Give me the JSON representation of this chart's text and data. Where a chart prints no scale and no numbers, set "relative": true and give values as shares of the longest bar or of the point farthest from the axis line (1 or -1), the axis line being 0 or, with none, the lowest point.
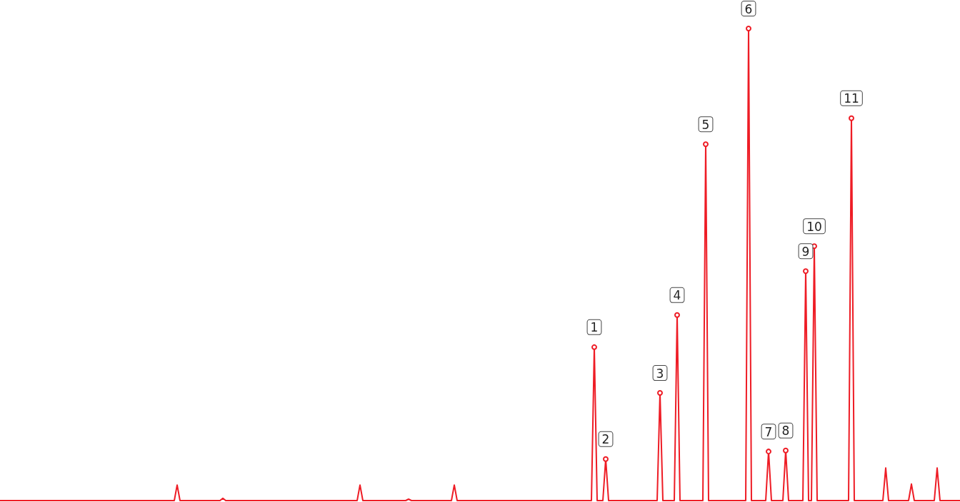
{
  "chart_data": {
    "type": "line",
    "relative": true,
    "tick_labels": false,
    "line_style": "solid",
    "annotations": [
      {
        "text": "1",
        "y": 0.325
      },
      {
        "text": "2",
        "y": 0.088
      },
      {
        "text": "3",
        "y": 0.228
      },
      {
        "text": "4",
        "y": 0.393
      },
      {
        "text": "5",
        "y": 0.755
      },
      {
        "text": "6",
        "y": 1
      },
      {
        "text": "7",
        "y": 0.104
      },
      {
        "text": "8",
        "y": 0.106
      },
      {
        "text": "9",
        "y": 0.486
      },
      {
        "text": "10",
        "y": 0.539
      },
      {
        "text": "11",
        "y": 0.81
      }
    ],
    "categories": [
      null,
      null,
      null,
      null,
      null,
      null,
      null,
      null,
      null,
      null,
      null,
      null,
      null,
      null,
      null,
      null,
      null,
      null,
      null,
      null,
      null,
      null,
      null,
      null,
      null,
      null,
      null,
      null,
      null,
      null,
      null,
      null,
      null,
      null,
      null,
      null,
      null,
      null,
      null,
      null,
      null,
      null,
      null,
      null,
      null,
      null,
      null,
      null,
      null,
      null,
      null,
      null,
      null,
      null,
      null,
      null,
      null,
      null,
      null,
      null,
      null,
      null,
      null,
      null,
      null,
      null,
      null,
      null,
      null,
      null,
      null,
      null,
      null,
      null,
      null,
      null,
      null,
      null,
      null,
      null,
      null,
      null,
      null,
      null,
      null,
      null,
      null,
      null,
      null,
      null,
      null,
      null,
      null,
      null,
      null,
      null,
      null,
      null,
      null,
      null,
      null,
      null,
      null,
      null,
      null,
      null,
      null,
      null,
      null,
      null,
      null,
      null,
      null,
      null,
      null,
      null,
      null,
      null,
      null,
      null,
      null,
      null,
      null,
      null,
      null,
      null,
      null,
      null,
      null,
      null,
      null,
      null,
      null,
      null,
      null,
      null,
      null,
      null,
      null,
      null,
      null,
      null,
      null,
      null,
      null,
      null,
      null,
      null,
      null,
      null,
      null,
      null,
      null,
      null,
      null,
      null,
      null,
      null,
      null,
      null,
      null,
      null,
      null,
      null,
      null,
      null,
      null,
      null,
      null,
      null,
      null,
      null,
      null,
      null,
      null,
      null,
      null,
      null,
      null,
      null,
      null,
      null,
      null,
      null,
      null,
      null,
      null,
      null,
      null,
      null,
      null,
      null,
      null,
      null,
      null,
      null,
      null,
      null,
      null,
      null,
      null,
      null,
      null,
      null,
      null,
      null,
      null,
      null,
      null,
      null,
      null,
      null,
      null,
      null,
      null,
      null,
      null,
      null,
      null,
      null,
      null,
      null,
      null,
      null,
      null,
      null,
      null,
      null,
      null,
      null,
      null,
      null,
      null,
      null,
      null,
      null,
      null,
      null,
      null,
      null,
      null,
      null,
      null,
      null,
      null,
      null,
      null,
      null,
      null,
      null,
      null,
      null,
      null,
      null,
      null,
      null,
      null,
      null,
      null,
      null,
      null,
      null,
      null,
      null,
      null,
      null,
      null,
      null,
      null,
      null,
      null,
      null,
      null,
      null,
      null,
      null,
      null,
      null,
      null,
      null,
      null,
      null,
      null,
      null,
      null,
      null,
      null,
      null,
      null,
      null,
      null,
      null,
      null,
      null,
      null,
      null,
      null,
      null,
      null,
      null,
      null,
      null,
      null,
      null,
      null,
      null,
      null,
      null,
      null,
      null,
      null,
      null,
      null,
      null,
      null,
      null,
      null,
      null,
      null,
      null,
      null,
      null,
      null,
      null,
      null,
      null,
      null,
      null,
      null,
      null,
      null,
      null,
      null,
      null,
      null,
      null,
      null
    ],
    "series": [
      {
        "color": "#ee1c25",
        "values": [
          0,
          0,
          0,
          0,
          0,
          0,
          0,
          0,
          0,
          0,
          0,
          0,
          0,
          0,
          0,
          0,
          0,
          0,
          0,
          0,
          0,
          0,
          0,
          0,
          0,
          0,
          0,
          0,
          0,
          0,
          0,
          0,
          0,
          0,
          0,
          0,
          0,
          0,
          0,
          0,
          0,
          0,
          0,
          0,
          0,
          0,
          0,
          0,
          0,
          0,
          0,
          0,
          0,
          0,
          0,
          0,
          0,
          0,
          0,
          0,
          0,
          0,
          0.033,
          0,
          0,
          0,
          0,
          0,
          0,
          0,
          0,
          0,
          0,
          0,
          0,
          0,
          0,
          0,
          0.005,
          0,
          0,
          0,
          0,
          0,
          0,
          0,
          0,
          0,
          0,
          0,
          0,
          0,
          0,
          0,
          0,
          0,
          0,
          0,
          0,
          0,
          0,
          0,
          0,
          0,
          0,
          0,
          0,
          0,
          0,
          0,
          0,
          0,
          0,
          0,
          0,
          0,
          0,
          0,
          0,
          0,
          0,
          0,
          0,
          0,
          0,
          0,
          0.033,
          0,
          0,
          0,
          0,
          0,
          0,
          0,
          0,
          0,
          0,
          0,
          0,
          0,
          0,
          0,
          0,
          0.003,
          0,
          0,
          0,
          0,
          0,
          0,
          0,
          0,
          0,
          0,
          0,
          0,
          0,
          0,
          0,
          0.033,
          0,
          0,
          0,
          0,
          0,
          0,
          0,
          0,
          0,
          0,
          0,
          0,
          0,
          0,
          0,
          0,
          0,
          0,
          0,
          0,
          0,
          0,
          0,
          0,
          0,
          0,
          0,
          0,
          0,
          0,
          0,
          0,
          0,
          0,
          0,
          0,
          0,
          0,
          0,
          0,
          0,
          0,
          0,
          0,
          0,
          0,
          0,
          0,
          0.325,
          0,
          0,
          0,
          0.088,
          0,
          0,
          0,
          0,
          0,
          0,
          0,
          0,
          0,
          0,
          0,
          0,
          0,
          0,
          0,
          0,
          0,
          0,
          0.228,
          0,
          0,
          0,
          0,
          0,
          0.393,
          0,
          0,
          0,
          0,
          0,
          0,
          0,
          0,
          0,
          0.755,
          0,
          0,
          0,
          0,
          0,
          0,
          0,
          0,
          0,
          0,
          0,
          0,
          0,
          0,
          1,
          0,
          0,
          0,
          0,
          0,
          0,
          0.104,
          0,
          0,
          0,
          0,
          0,
          0.106,
          0,
          0,
          0,
          0,
          0,
          0,
          0.486,
          0,
          0,
          0.539,
          0,
          0,
          0,
          0,
          0,
          0,
          0,
          0,
          0,
          0,
          0,
          0,
          0.81,
          0,
          0,
          0,
          0,
          0,
          0,
          0,
          0,
          0,
          0,
          0,
          0.069,
          0,
          0,
          0,
          0,
          0,
          0,
          0,
          0,
          0.035,
          0,
          0,
          0,
          0,
          0,
          0,
          0,
          0,
          0.069,
          0,
          0,
          0,
          0,
          0,
          0,
          0,
          0
        ]
      }
    ]
  }
}
